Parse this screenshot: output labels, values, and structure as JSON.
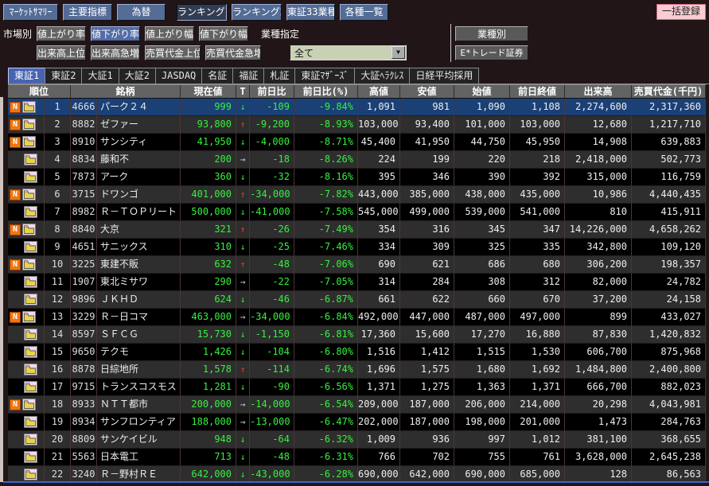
{
  "toolbar": {
    "buttons": [
      {
        "label": "ﾏｰｹｯﾄｻﾏﾘｰ",
        "active": false
      },
      {
        "label": "主要指標",
        "active": false
      },
      {
        "label": "為替",
        "active": false
      },
      {
        "label": "ランキング1",
        "active": true
      },
      {
        "label": "ランキング2",
        "active": false
      },
      {
        "label": "東証33業種",
        "active": false
      },
      {
        "label": "各種一覧",
        "active": false
      }
    ],
    "batch_register_label": "一括登録"
  },
  "filters": {
    "market_label": "市場別",
    "industry_label": "業種指定",
    "rank_buttons": [
      {
        "label": "値上がり率",
        "selected": false
      },
      {
        "label": "値下がり率",
        "selected": true
      },
      {
        "label": "値上がり幅",
        "selected": false
      },
      {
        "label": "値下がり幅",
        "selected": false
      }
    ],
    "volume_buttons": [
      {
        "label": "出来高上位",
        "selected": false
      },
      {
        "label": "出来高急増",
        "selected": false
      },
      {
        "label": "売買代金上位",
        "selected": false
      },
      {
        "label": "売買代金急増",
        "selected": false
      }
    ],
    "industry_dropdown_value": "全て",
    "industry_by_button": "業種別",
    "broker_button": "E*トレード証券"
  },
  "tabs": [
    {
      "label": "東証1",
      "selected": true
    },
    {
      "label": "東証2",
      "selected": false
    },
    {
      "label": "大証1",
      "selected": false
    },
    {
      "label": "大証2",
      "selected": false
    },
    {
      "label": "JASDAQ",
      "selected": false
    },
    {
      "label": "名証",
      "selected": false
    },
    {
      "label": "福証",
      "selected": false
    },
    {
      "label": "札証",
      "selected": false
    },
    {
      "label": "東証ﾏｻﾞｰｽﾞ",
      "selected": false
    },
    {
      "label": "大証ﾍﾗｸﾚｽ",
      "selected": false
    },
    {
      "label": "日経平均採用",
      "selected": false
    }
  ],
  "icons": {
    "up": "↑",
    "down": "↓",
    "flat": "→",
    "news_badge": "N",
    "dropdown_arrow": "▼"
  },
  "colors": {
    "accent_blue": "#47618e",
    "selected_row": "#1a4076",
    "green": "#35f13c",
    "red": "#f1402a",
    "batch_pink": "#f8ccd2",
    "dropdown_green": "#c9d1b5",
    "news_orange": "#ee7711",
    "bottom_line_blue": "#3a66cc"
  },
  "table": {
    "headers": [
      "順位",
      "銘柄",
      "現在値",
      "T",
      "前日比",
      "前日比(%)",
      "高値",
      "安値",
      "始値",
      "前日終値",
      "出来高",
      "売買代金(千円)"
    ],
    "rows": [
      {
        "news": true,
        "selected": true,
        "rank": "1",
        "code": "4666",
        "name": "パーク２４",
        "price": "999",
        "dir": "down",
        "change": "-109",
        "change_pct": "-9.84%",
        "high": "1,091",
        "low": "981",
        "open": "1,090",
        "prev_close": "1,108",
        "volume": "2,274,600",
        "value": "2,317,360"
      },
      {
        "news": true,
        "selected": false,
        "rank": "2",
        "code": "8882",
        "name": "ゼファー",
        "price": "93,800",
        "dir": "up",
        "change": "-9,200",
        "change_pct": "-8.93%",
        "high": "103,000",
        "low": "93,400",
        "open": "101,000",
        "prev_close": "103,000",
        "volume": "12,680",
        "value": "1,217,710"
      },
      {
        "news": true,
        "selected": false,
        "rank": "3",
        "code": "8910",
        "name": "サンシティ",
        "price": "41,950",
        "dir": "down",
        "change": "-4,000",
        "change_pct": "-8.71%",
        "high": "45,400",
        "low": "41,950",
        "open": "44,750",
        "prev_close": "45,950",
        "volume": "14,908",
        "value": "639,883"
      },
      {
        "news": false,
        "selected": false,
        "rank": "4",
        "code": "8834",
        "name": "藤和不",
        "price": "200",
        "dir": "flat",
        "change": "-18",
        "change_pct": "-8.26%",
        "high": "224",
        "low": "199",
        "open": "220",
        "prev_close": "218",
        "volume": "2,418,000",
        "value": "502,773"
      },
      {
        "news": false,
        "selected": false,
        "rank": "5",
        "code": "7873",
        "name": "アーク",
        "price": "360",
        "dir": "down",
        "change": "-32",
        "change_pct": "-8.16%",
        "high": "395",
        "low": "346",
        "open": "390",
        "prev_close": "392",
        "volume": "315,000",
        "value": "116,759"
      },
      {
        "news": true,
        "selected": false,
        "rank": "6",
        "code": "3715",
        "name": "ドワンゴ",
        "price": "401,000",
        "dir": "up",
        "change": "-34,000",
        "change_pct": "-7.82%",
        "high": "443,000",
        "low": "385,000",
        "open": "438,000",
        "prev_close": "435,000",
        "volume": "10,986",
        "value": "4,440,435"
      },
      {
        "news": false,
        "selected": false,
        "rank": "7",
        "code": "8982",
        "name": "Ｒ－ＴＯＰリート",
        "price": "500,000",
        "dir": "down",
        "change": "-41,000",
        "change_pct": "-7.58%",
        "high": "545,000",
        "low": "499,000",
        "open": "539,000",
        "prev_close": "541,000",
        "volume": "810",
        "value": "415,911"
      },
      {
        "news": true,
        "selected": false,
        "rank": "8",
        "code": "8840",
        "name": "大京",
        "price": "321",
        "dir": "up",
        "change": "-26",
        "change_pct": "-7.49%",
        "high": "354",
        "low": "316",
        "open": "345",
        "prev_close": "347",
        "volume": "14,226,000",
        "value": "4,658,262"
      },
      {
        "news": false,
        "selected": false,
        "rank": "9",
        "code": "4651",
        "name": "サニックス",
        "price": "310",
        "dir": "down",
        "change": "-25",
        "change_pct": "-7.46%",
        "high": "334",
        "low": "309",
        "open": "325",
        "prev_close": "335",
        "volume": "342,800",
        "value": "109,120"
      },
      {
        "news": true,
        "selected": false,
        "rank": "10",
        "code": "3225",
        "name": "東建不販",
        "price": "632",
        "dir": "up",
        "change": "-48",
        "change_pct": "-7.06%",
        "high": "690",
        "low": "621",
        "open": "686",
        "prev_close": "680",
        "volume": "306,200",
        "value": "198,357"
      },
      {
        "news": false,
        "selected": false,
        "rank": "11",
        "code": "1907",
        "name": "東北ミサワ",
        "price": "290",
        "dir": "flat",
        "change": "-22",
        "change_pct": "-7.05%",
        "high": "314",
        "low": "284",
        "open": "308",
        "prev_close": "312",
        "volume": "82,000",
        "value": "24,782"
      },
      {
        "news": false,
        "selected": false,
        "rank": "12",
        "code": "9896",
        "name": "ＪＫＨＤ",
        "price": "624",
        "dir": "down",
        "change": "-46",
        "change_pct": "-6.87%",
        "high": "661",
        "low": "622",
        "open": "660",
        "prev_close": "670",
        "volume": "37,200",
        "value": "24,158"
      },
      {
        "news": true,
        "selected": false,
        "rank": "13",
        "code": "3229",
        "name": "Ｒ－日コマ",
        "price": "463,000",
        "dir": "flat",
        "change": "-34,000",
        "change_pct": "-6.84%",
        "high": "492,000",
        "low": "447,000",
        "open": "487,000",
        "prev_close": "497,000",
        "volume": "899",
        "value": "433,027"
      },
      {
        "news": false,
        "selected": false,
        "rank": "14",
        "code": "8597",
        "name": "ＳＦＣＧ",
        "price": "15,730",
        "dir": "down",
        "change": "-1,150",
        "change_pct": "-6.81%",
        "high": "17,360",
        "low": "15,600",
        "open": "17,270",
        "prev_close": "16,880",
        "volume": "87,830",
        "value": "1,420,832"
      },
      {
        "news": false,
        "selected": false,
        "rank": "15",
        "code": "9650",
        "name": "テクモ",
        "price": "1,426",
        "dir": "down",
        "change": "-104",
        "change_pct": "-6.80%",
        "high": "1,516",
        "low": "1,412",
        "open": "1,515",
        "prev_close": "1,530",
        "volume": "606,700",
        "value": "875,968"
      },
      {
        "news": false,
        "selected": false,
        "rank": "16",
        "code": "8878",
        "name": "日綜地所",
        "price": "1,578",
        "dir": "up",
        "change": "-114",
        "change_pct": "-6.74%",
        "high": "1,696",
        "low": "1,575",
        "open": "1,680",
        "prev_close": "1,692",
        "volume": "1,484,800",
        "value": "2,400,800"
      },
      {
        "news": false,
        "selected": false,
        "rank": "17",
        "code": "9715",
        "name": "トランスコスモス",
        "price": "1,281",
        "dir": "down",
        "change": "-90",
        "change_pct": "-6.56%",
        "high": "1,371",
        "low": "1,275",
        "open": "1,363",
        "prev_close": "1,371",
        "volume": "666,700",
        "value": "882,023"
      },
      {
        "news": true,
        "selected": false,
        "rank": "18",
        "code": "8933",
        "name": "ＮＴＴ都市",
        "price": "200,000",
        "dir": "flat",
        "change": "-14,000",
        "change_pct": "-6.54%",
        "high": "209,000",
        "low": "187,000",
        "open": "206,000",
        "prev_close": "214,000",
        "volume": "20,298",
        "value": "4,043,981"
      },
      {
        "news": false,
        "selected": false,
        "rank": "19",
        "code": "8934",
        "name": "サンフロンティア",
        "price": "188,000",
        "dir": "flat",
        "change": "-13,000",
        "change_pct": "-6.47%",
        "high": "202,000",
        "low": "187,000",
        "open": "198,000",
        "prev_close": "201,000",
        "volume": "1,473",
        "value": "284,763"
      },
      {
        "news": false,
        "selected": false,
        "rank": "20",
        "code": "8809",
        "name": "サンケイビル",
        "price": "948",
        "dir": "down",
        "change": "-64",
        "change_pct": "-6.32%",
        "high": "1,009",
        "low": "936",
        "open": "997",
        "prev_close": "1,012",
        "volume": "381,100",
        "value": "368,655"
      },
      {
        "news": false,
        "selected": false,
        "rank": "21",
        "code": "5563",
        "name": "日本電工",
        "price": "713",
        "dir": "down",
        "change": "-48",
        "change_pct": "-6.31%",
        "high": "766",
        "low": "702",
        "open": "755",
        "prev_close": "761",
        "volume": "3,628,000",
        "value": "2,645,238"
      },
      {
        "news": false,
        "selected": false,
        "rank": "22",
        "code": "3240",
        "name": "Ｒ－野村ＲＥ",
        "price": "642,000",
        "dir": "down",
        "change": "-43,000",
        "change_pct": "-6.28%",
        "high": "690,000",
        "low": "642,000",
        "open": "690,000",
        "prev_close": "685,000",
        "volume": "128",
        "value": "86,563"
      }
    ]
  }
}
